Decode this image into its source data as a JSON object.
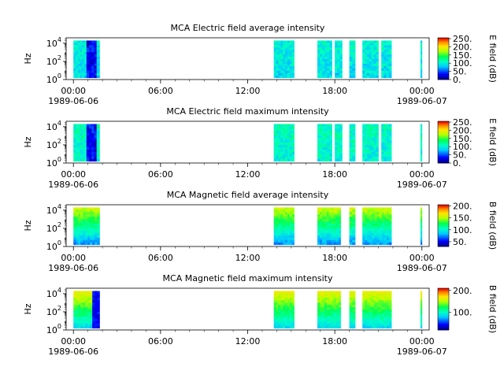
{
  "chart_data": [
    {
      "type": "heatmap",
      "title": "MCA  Electric field average intensity",
      "ylabel": "Hz",
      "colorbar_label": "E field (dB)",
      "colorbar_ticks": [
        "250.",
        "200.",
        "150.",
        "100.",
        "50.",
        "0."
      ],
      "colorbar_range": [
        0,
        255
      ],
      "colormap": "rainbow",
      "y_ticks": [
        "10^0",
        "10^2",
        "10^4"
      ],
      "ylim_log10": [
        0,
        4.6
      ],
      "x_ticks": [
        "00:00",
        "06:00",
        "12:00",
        "18:00",
        "00:00"
      ],
      "x_dates": [
        "1989-06-06",
        "1989-06-07"
      ],
      "xlim_hours": [
        -0.5,
        24.5
      ],
      "data_segments_hours": [
        [
          0.0,
          0.9
        ],
        [
          0.9,
          1.6
        ],
        [
          1.6,
          1.8
        ],
        [
          13.8,
          15.2
        ],
        [
          16.8,
          17.8
        ],
        [
          18.0,
          18.5
        ],
        [
          19.0,
          19.4
        ],
        [
          19.9,
          21.0
        ],
        [
          21.2,
          21.9
        ],
        [
          23.9,
          24.0
        ]
      ],
      "typical_level_db": 100
    },
    {
      "type": "heatmap",
      "title": "MCA  Electric field maximum intensity",
      "ylabel": "Hz",
      "colorbar_label": "E field (dB)",
      "colorbar_ticks": [
        "250.",
        "200.",
        "150.",
        "100.",
        "50.",
        "0."
      ],
      "colorbar_range": [
        0,
        255
      ],
      "colormap": "rainbow",
      "y_ticks": [
        "10^0",
        "10^2",
        "10^4"
      ],
      "ylim_log10": [
        0,
        4.6
      ],
      "x_ticks": [
        "00:00",
        "06:00",
        "12:00",
        "18:00",
        "00:00"
      ],
      "x_dates": [
        "1989-06-06",
        "1989-06-07"
      ],
      "xlim_hours": [
        -0.5,
        24.5
      ],
      "data_segments_hours": [
        [
          0.0,
          0.9
        ],
        [
          0.9,
          1.6
        ],
        [
          1.6,
          1.8
        ],
        [
          13.8,
          15.2
        ],
        [
          16.8,
          17.8
        ],
        [
          18.0,
          18.5
        ],
        [
          19.0,
          19.4
        ],
        [
          19.9,
          21.0
        ],
        [
          21.2,
          21.9
        ],
        [
          23.9,
          24.0
        ]
      ],
      "typical_level_db": 110
    },
    {
      "type": "heatmap",
      "title": "MCA  Magnetic field average intensity",
      "ylabel": "Hz",
      "colorbar_label": "B field (dB)",
      "colorbar_ticks": [
        "200.",
        "150.",
        "100.",
        "50."
      ],
      "colorbar_range": [
        30,
        205
      ],
      "colormap": "rainbow",
      "y_ticks": [
        "10^0",
        "10^2",
        "10^4"
      ],
      "ylim_log10": [
        0,
        4.6
      ],
      "x_ticks": [
        "00:00",
        "06:00",
        "12:00",
        "18:00",
        "00:00"
      ],
      "x_dates": [
        "1989-06-06",
        "1989-06-07"
      ],
      "xlim_hours": [
        -0.5,
        24.5
      ],
      "data_segments_hours": [
        [
          0.0,
          1.3
        ],
        [
          1.3,
          1.8
        ],
        [
          13.8,
          15.2
        ],
        [
          16.8,
          18.4
        ],
        [
          19.0,
          19.4
        ],
        [
          19.9,
          21.9
        ],
        [
          23.9,
          24.0
        ]
      ],
      "typical_level_db": 110
    },
    {
      "type": "heatmap",
      "title": "MCA  Magnetic field maximum intensity",
      "ylabel": "Hz",
      "colorbar_label": "B field (dB)",
      "colorbar_ticks": [
        "200.",
        "100."
      ],
      "colorbar_range": [
        20,
        210
      ],
      "colormap": "rainbow",
      "y_ticks": [
        "10^0",
        "10^2",
        "10^4"
      ],
      "ylim_log10": [
        0,
        4.6
      ],
      "x_ticks": [
        "00:00",
        "06:00",
        "12:00",
        "18:00",
        "00:00"
      ],
      "x_dates": [
        "1989-06-06",
        "1989-06-07"
      ],
      "xlim_hours": [
        -0.5,
        24.5
      ],
      "data_segments_hours": [
        [
          0.0,
          1.3
        ],
        [
          1.3,
          1.8
        ],
        [
          13.8,
          15.2
        ],
        [
          16.8,
          18.4
        ],
        [
          19.0,
          19.4
        ],
        [
          19.9,
          21.9
        ],
        [
          23.9,
          24.0
        ]
      ],
      "typical_level_db": 120
    }
  ]
}
